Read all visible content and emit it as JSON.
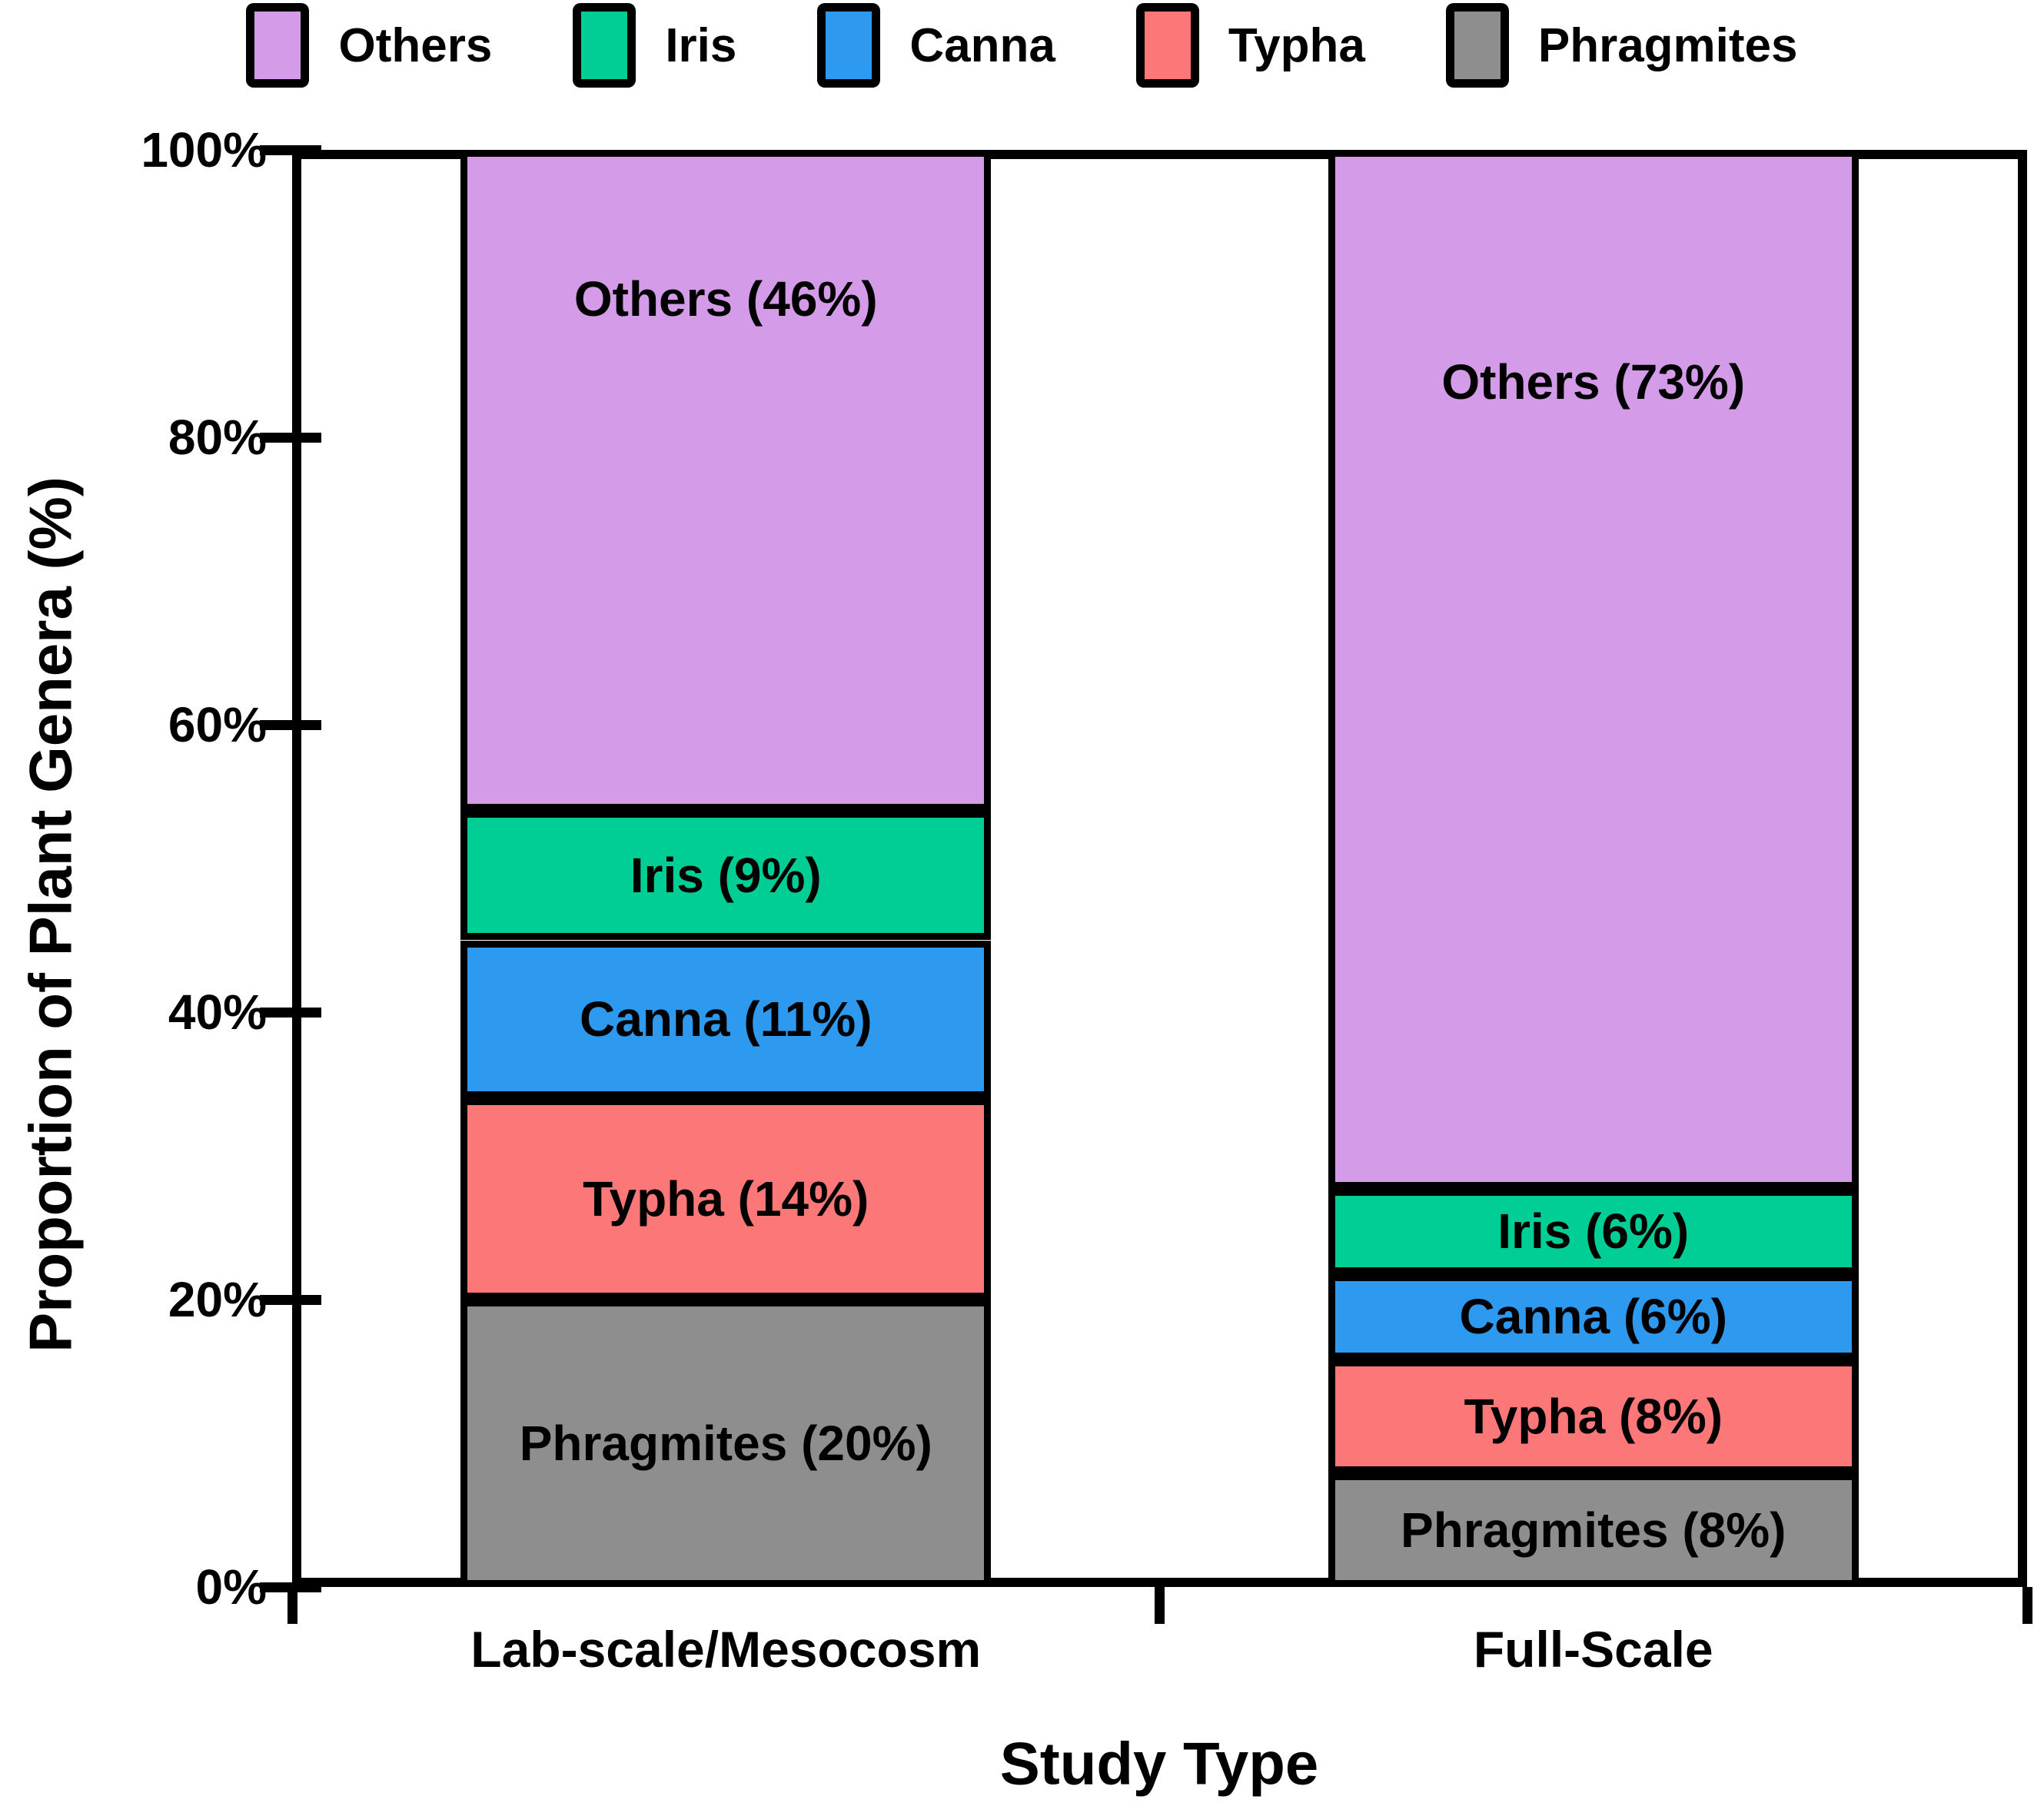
{
  "chart_data": {
    "type": "bar",
    "stacked": true,
    "categories": [
      "Lab-scale/Mesocosm",
      "Full-Scale"
    ],
    "series": [
      {
        "name": "Phragmites",
        "color": "#8E8E8E",
        "values": [
          20,
          8
        ],
        "segment_labels": [
          "Phragmites (20%)",
          "Phragmites (8%)"
        ]
      },
      {
        "name": "Typha",
        "color": "#FC7777",
        "values": [
          14,
          8
        ],
        "segment_labels": [
          "Typha (14%)",
          "Typha (8%)"
        ]
      },
      {
        "name": "Canna",
        "color": "#2D9AEF",
        "values": [
          11,
          6
        ],
        "segment_labels": [
          "Canna (11%)",
          "Canna (6%)"
        ]
      },
      {
        "name": "Iris",
        "color": "#00CE94",
        "values": [
          9,
          6
        ],
        "segment_labels": [
          "Iris (9%)",
          "Iris (6%)"
        ]
      },
      {
        "name": "Others",
        "color": "#D49BE8",
        "values": [
          46,
          73
        ],
        "segment_labels": [
          "Others (46%)",
          "Others (73%)"
        ]
      }
    ],
    "legend": {
      "position": "top",
      "entries": [
        "Others",
        "Iris",
        "Canna",
        "Typha",
        "Phragmites"
      ]
    },
    "xlabel": "Study Type",
    "ylabel": "Proportion of Plant Genera (%)",
    "y_ticks": [
      {
        "value": 0,
        "label": "0%"
      },
      {
        "value": 20,
        "label": "20%"
      },
      {
        "value": 40,
        "label": "40%"
      },
      {
        "value": 60,
        "label": "60%"
      },
      {
        "value": 80,
        "label": "80%"
      },
      {
        "value": 100,
        "label": "100%"
      }
    ],
    "ylim": [
      0,
      100
    ],
    "grid": false,
    "bar_outline_color": "#000000",
    "text_color": "#000000"
  }
}
